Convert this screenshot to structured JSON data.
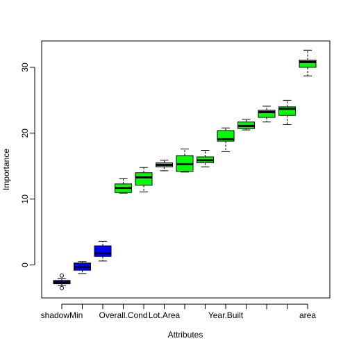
{
  "chart_data": {
    "type": "boxplot",
    "xlabel": "Attributes",
    "ylabel": "Importance",
    "ylim": [
      -5,
      34
    ],
    "yticks": [
      0,
      10,
      20,
      30
    ],
    "xtick_labels_shown": [
      "shadowMin",
      "Overall.Cond",
      "Lot.Area",
      "Year.Built",
      "area"
    ],
    "colors": {
      "shadow": "#0000ff",
      "confirmed": "#00ff00",
      "border": "#000000"
    },
    "boxes": [
      {
        "category": "shadowMin",
        "group": "shadow",
        "min": -3.1,
        "q1": -2.85,
        "median": -2.6,
        "q3": -2.35,
        "max": -2.1,
        "outliers": [
          -1.6,
          -3.5
        ]
      },
      {
        "category": "",
        "group": "shadow",
        "min": -1.3,
        "q1": -0.8,
        "median": -0.3,
        "q3": 0.3,
        "max": 0.5,
        "outliers": []
      },
      {
        "category": "",
        "group": "shadow",
        "min": 0.6,
        "q1": 1.3,
        "median": 1.8,
        "q3": 2.9,
        "max": 3.6,
        "outliers": []
      },
      {
        "category": "Overall.Cond",
        "group": "confirmed",
        "min": 10.9,
        "q1": 11.0,
        "median": 11.7,
        "q3": 12.3,
        "max": 13.1,
        "outliers": []
      },
      {
        "category": "",
        "group": "confirmed",
        "min": 11.1,
        "q1": 12.1,
        "median": 13.3,
        "q3": 14.0,
        "max": 14.8,
        "outliers": []
      },
      {
        "category": "Lot.Area",
        "group": "confirmed",
        "min": 14.3,
        "q1": 14.9,
        "median": 15.2,
        "q3": 15.5,
        "max": 15.9,
        "outliers": []
      },
      {
        "category": "",
        "group": "confirmed",
        "min": 14.1,
        "q1": 14.2,
        "median": 15.3,
        "q3": 16.6,
        "max": 17.6,
        "outliers": []
      },
      {
        "category": "",
        "group": "confirmed",
        "min": 14.9,
        "q1": 15.5,
        "median": 15.9,
        "q3": 16.4,
        "max": 17.4,
        "outliers": []
      },
      {
        "category": "Year.Built",
        "group": "confirmed",
        "min": 17.2,
        "q1": 18.8,
        "median": 19.1,
        "q3": 20.4,
        "max": 20.8,
        "outliers": []
      },
      {
        "category": "",
        "group": "confirmed",
        "min": 20.5,
        "q1": 20.7,
        "median": 21.1,
        "q3": 21.7,
        "max": 22.1,
        "outliers": []
      },
      {
        "category": "",
        "group": "confirmed",
        "min": 21.7,
        "q1": 22.4,
        "median": 23.2,
        "q3": 23.5,
        "max": 24.1,
        "outliers": []
      },
      {
        "category": "",
        "group": "confirmed",
        "min": 21.3,
        "q1": 22.7,
        "median": 23.7,
        "q3": 24.0,
        "max": 25.0,
        "outliers": []
      },
      {
        "category": "area",
        "group": "confirmed",
        "min": 28.7,
        "q1": 30.0,
        "median": 30.8,
        "q3": 31.1,
        "max": 32.6,
        "outliers": []
      }
    ]
  }
}
